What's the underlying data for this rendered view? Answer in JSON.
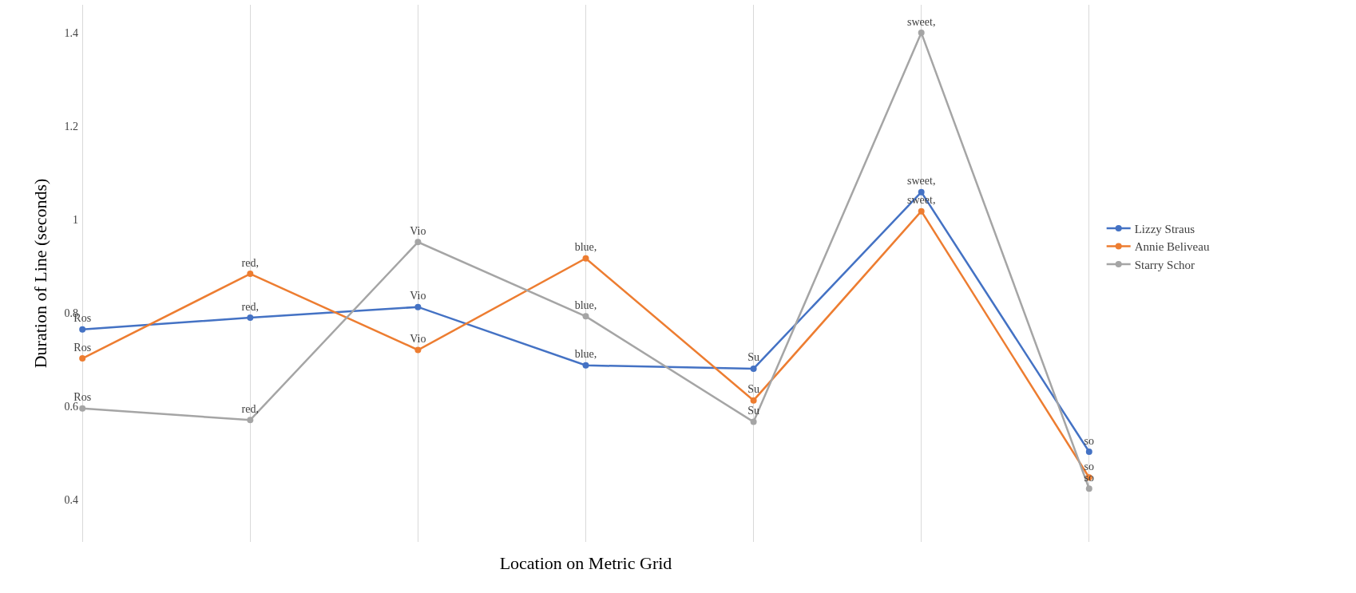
{
  "chart_data": {
    "type": "line",
    "xlabel": "Location on Metric Grid",
    "ylabel": "Duration of Line (seconds)",
    "categories": [
      null,
      null,
      null,
      null,
      null,
      null,
      null
    ],
    "ylim": [
      0.31,
      1.46
    ],
    "yticks": [
      0.4,
      0.6,
      0.8,
      1,
      1.2,
      1.4
    ],
    "grid": "x",
    "legend": "right",
    "marker": "circle",
    "line_style": "solid",
    "series": [
      {
        "name": "Lizzy Straus",
        "color": "#4472c4",
        "values": [
          0.765,
          0.79,
          0.813,
          0.688,
          0.681,
          1.059,
          0.503
        ],
        "value_labels": [
          "Ros",
          "red,",
          "Vio",
          "blue,",
          "Su",
          "sweet,",
          "so"
        ]
      },
      {
        "name": "Annie Beliveau",
        "color": "#ed7d31",
        "values": [
          0.703,
          0.884,
          0.721,
          0.917,
          0.613,
          1.018,
          0.448
        ],
        "value_labels": [
          "Ros",
          "red,",
          "Vio",
          "blue,",
          "Su",
          "sweet,",
          "so"
        ]
      },
      {
        "name": "Starry Schor",
        "color": "#a5a5a5",
        "values": [
          0.596,
          0.571,
          0.952,
          0.793,
          0.567,
          1.4,
          0.424
        ],
        "value_labels": [
          "Ros",
          "red,",
          "Vio",
          "blue,",
          "Su",
          "sweet,",
          "so"
        ]
      }
    ]
  }
}
